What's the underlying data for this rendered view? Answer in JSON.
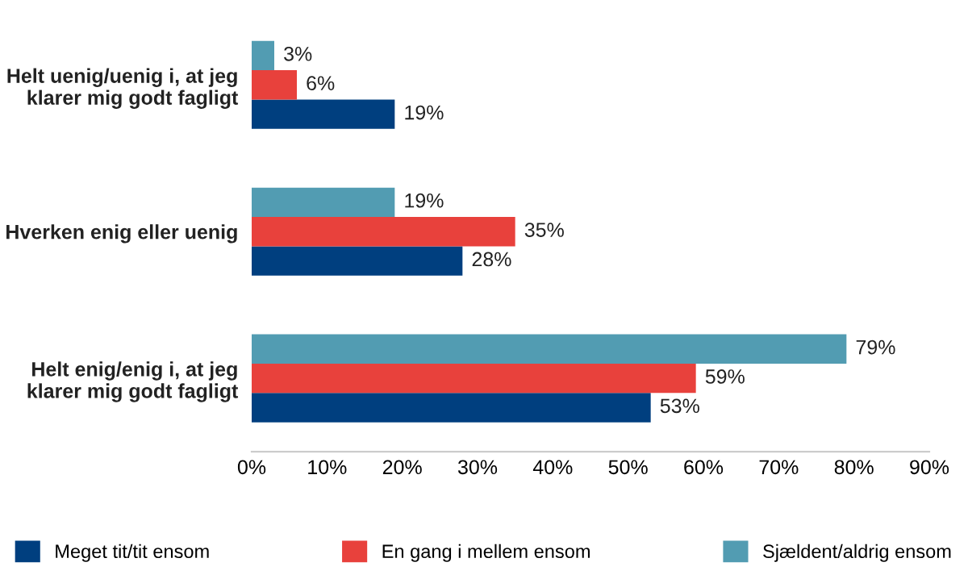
{
  "chart_data": {
    "type": "bar",
    "orientation": "horizontal",
    "categories": [
      "Helt uenig/uenig i, at jeg\nklarer mig godt fagligt",
      "Hverken enig eller uenig",
      "Helt enig/enig i, at jeg\nklarer mig godt fagligt"
    ],
    "series": [
      {
        "name": "Meget tit/tit ensom",
        "color": "#003f7f",
        "values": [
          19,
          28,
          53
        ],
        "value_labels": [
          "19%",
          "28%",
          "53%"
        ]
      },
      {
        "name": "En gang i mellem ensom",
        "color": "#e8413c",
        "values": [
          6,
          35,
          59
        ],
        "value_labels": [
          "6%",
          "35%",
          "59%"
        ]
      },
      {
        "name": "Sjældent/aldrig ensom",
        "color": "#529cb2",
        "values": [
          3,
          19,
          79
        ],
        "value_labels": [
          "3%",
          "19%",
          "79%"
        ]
      }
    ],
    "xlim": [
      0,
      90
    ],
    "xticks": [
      {
        "value": 0,
        "label": "0%"
      },
      {
        "value": 10,
        "label": "10%"
      },
      {
        "value": 20,
        "label": "20%"
      },
      {
        "value": 30,
        "label": "30%"
      },
      {
        "value": 40,
        "label": "40%"
      },
      {
        "value": 50,
        "label": "50%"
      },
      {
        "value": 60,
        "label": "60%"
      },
      {
        "value": 70,
        "label": "70%"
      },
      {
        "value": 80,
        "label": "80%"
      },
      {
        "value": 90,
        "label": "90%"
      }
    ],
    "grid": false,
    "legend": "bottom"
  }
}
